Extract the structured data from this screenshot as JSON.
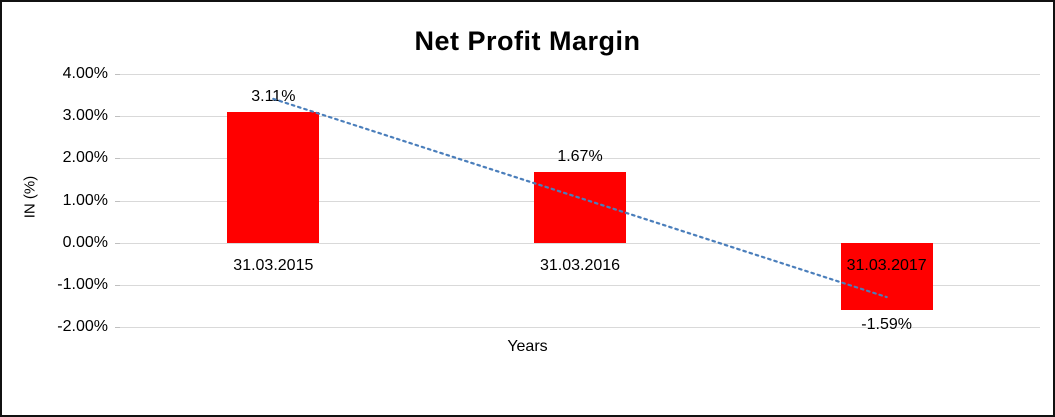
{
  "chart_data": {
    "type": "bar",
    "title": "Net Profit Margin",
    "categories": [
      "31.03.2015",
      "31.03.2016",
      "31.03.2017"
    ],
    "values": [
      3.11,
      1.67,
      -1.59
    ],
    "data_labels": [
      "3.11%",
      "1.67%",
      "-1.59%"
    ],
    "xlabel": "Years",
    "ylabel": "IN (%)",
    "ylim": [
      -2,
      4
    ],
    "ytick_step": 1,
    "ytick_labels": [
      "4.00%",
      "3.00%",
      "2.00%",
      "1.00%",
      "0.00%",
      "-1.00%",
      "-2.00%"
    ],
    "bar_color": "#ff0000",
    "gridline_color": "#d9d9d9",
    "grid": true,
    "legend_position": "none",
    "trendline": {
      "style": "dotted",
      "color": "#4a7ebb",
      "y_start": 3.41,
      "y_end": -1.29
    }
  }
}
